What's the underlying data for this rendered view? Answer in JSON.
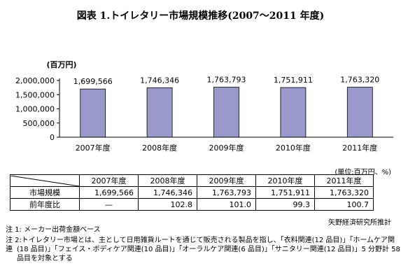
{
  "title": "図表 1.トイレタリー市場規模推移(2007～2011 年度)",
  "chart_data": {
    "type": "bar",
    "ylabel": "(百万円)",
    "categories": [
      "2007年度",
      "2008年度",
      "2009年度",
      "2010年度",
      "2011年度"
    ],
    "values": [
      1699566,
      1746346,
      1763793,
      1751911,
      1763320
    ],
    "value_labels": [
      "1,699,566",
      "1,746,346",
      "1,763,793",
      "1,751,911",
      "1,763,320"
    ],
    "ylim": [
      0,
      2000000
    ],
    "yticks": [
      0,
      500000,
      1000000,
      1500000,
      2000000
    ],
    "ytick_labels": [
      "0",
      "500,000",
      "1,000,000",
      "1,500,000",
      "2,000,000"
    ],
    "bar_color": "#9999cc",
    "grid": false
  },
  "table": {
    "unit": "(単位:百万円、%)",
    "headers": [
      "2007年度",
      "2008年度",
      "2009年度",
      "2010年度",
      "2011年度"
    ],
    "rows": [
      {
        "label": "市場規模",
        "values": [
          "1,699,566",
          "1,746,346",
          "1,763,793",
          "1,751,911",
          "1,763,320"
        ]
      },
      {
        "label": "前年度比",
        "values": [
          "—",
          "102.8",
          "101.0",
          "99.3",
          "100.7"
        ]
      }
    ]
  },
  "source": "矢野経済研究所推計",
  "notes": [
    "注 1: メーカー出荷金額ベース",
    "注 2:トイレタリー市場とは、主として日用雑貨ルートを通じて販売される製品を指し、「衣料関連(12 品目)」「ホームケア関連",
    "(18 品目)」「フェイス・ボディケア関連(10 品目)」「オーラルケア関連(6 品目)」「サニタリー関連(12 品目)」5 分野計 58",
    "品目を対象とする"
  ]
}
